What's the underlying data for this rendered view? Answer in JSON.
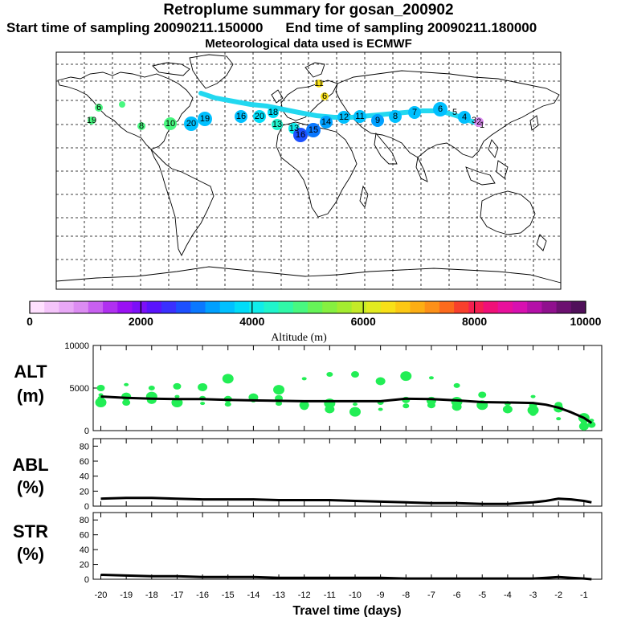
{
  "header": {
    "title": "Retroplume summary for gosan_200902",
    "start_label": "Start time of sampling 20090211.150000",
    "end_label": "End time of sampling 20090211.180000",
    "met_label": "Meteorological data used is ECMWF"
  },
  "colors": {
    "track": "#22d8f0",
    "points": "#22ee55",
    "line": "#000000"
  },
  "chart_data": [
    {
      "type": "map",
      "title": "Retroplume summary for gosan_200902",
      "description_labels": [
        "Altitude (m)"
      ],
      "map_labels": [
        "11",
        "6",
        "6",
        "19",
        "8",
        "10",
        "20",
        "19",
        "16",
        "20",
        "18",
        "13",
        "13",
        "16",
        "15",
        "14",
        "12",
        "11",
        "9",
        "8",
        "7",
        "6",
        "5",
        "4",
        "3",
        "2",
        "1"
      ],
      "colorbar": {
        "label": "Altitude (m)",
        "ticks": [
          "0",
          "2000",
          "4000",
          "6000",
          "8000",
          "10000"
        ],
        "range": [
          0,
          10000
        ],
        "colors": [
          "#ffe0ff",
          "#f4c4fa",
          "#e8a8f6",
          "#dc8cf2",
          "#c860f0",
          "#b030f0",
          "#9a10f4",
          "#7c10f8",
          "#5a14fc",
          "#3a30ff",
          "#1c50ff",
          "#0a78ff",
          "#00a0ff",
          "#00c0ff",
          "#00dcf8",
          "#10ecea",
          "#20f4cc",
          "#30f8a8",
          "#48f880",
          "#66f458",
          "#86f040",
          "#a4ec30",
          "#c4ea28",
          "#e2ea20",
          "#f8e018",
          "#fcc814",
          "#fcae14",
          "#fc9018",
          "#fc6a1c",
          "#f8402c",
          "#f42050",
          "#f01078",
          "#e8109c",
          "#d810b0",
          "#b410a8",
          "#90108e",
          "#6c1070",
          "#50105a"
        ]
      }
    },
    {
      "type": "scatter",
      "panel": "ALT",
      "ylabel": "ALT (m)",
      "ylim": [
        0,
        10000
      ],
      "yticks": [
        "0",
        "5000",
        "10000"
      ],
      "line": {
        "x": [
          -20,
          -19,
          -18,
          -17,
          -16,
          -15,
          -14,
          -13,
          -12,
          -11,
          -10,
          -9,
          -8,
          -7,
          -6,
          -5,
          -4,
          -3,
          -2.5,
          -2,
          -1.5,
          -1,
          -0.7
        ],
        "y": [
          4000,
          3850,
          3750,
          3700,
          3700,
          3600,
          3550,
          3500,
          3450,
          3450,
          3450,
          3450,
          3750,
          3700,
          3550,
          3350,
          3300,
          3250,
          3050,
          2700,
          2150,
          1500,
          900
        ]
      },
      "points": {
        "x": [
          -20,
          -20,
          -20,
          -20,
          -19,
          -19,
          -19,
          -18,
          -18,
          -18,
          -17,
          -17,
          -17,
          -16,
          -16,
          -16,
          -15,
          -15,
          -15,
          -14,
          -14,
          -13,
          -13,
          -13,
          -12,
          -12,
          -12,
          -11,
          -11,
          -11,
          -10,
          -10,
          -10,
          -9,
          -9,
          -9,
          -8,
          -8,
          -8,
          -7,
          -7,
          -7,
          -6,
          -6,
          -6,
          -5,
          -5,
          -5,
          -4,
          -4,
          -3,
          -3,
          -3,
          -3,
          -2,
          -2,
          -2,
          -1,
          -1,
          -1,
          -0.7,
          -0.7
        ],
        "y": [
          4200,
          5000,
          3300,
          3800,
          4000,
          5400,
          3300,
          4000,
          5000,
          3600,
          4000,
          5200,
          3300,
          3800,
          5100,
          3200,
          3700,
          6100,
          3100,
          3900,
          3500,
          3800,
          4800,
          3200,
          3000,
          6100,
          2800,
          3200,
          6600,
          2500,
          3100,
          6600,
          2200,
          3300,
          5800,
          2500,
          3600,
          6400,
          2900,
          3500,
          6200,
          3000,
          3400,
          5300,
          2800,
          3300,
          4200,
          3000,
          3200,
          2500,
          4000,
          3000,
          2400,
          2000,
          2600,
          1400,
          3000,
          1500,
          1000,
          500,
          1200,
          700
        ]
      }
    },
    {
      "type": "line",
      "panel": "ABL",
      "ylabel": "ABL (%)",
      "ylim": [
        0,
        90
      ],
      "yticks": [
        "0",
        "20",
        "40",
        "60",
        "80"
      ],
      "x": [
        -20,
        -19,
        -18,
        -17,
        -16,
        -15,
        -14,
        -13,
        -12,
        -11,
        -10,
        -9,
        -8,
        -7,
        -6,
        -5,
        -4,
        -3,
        -2.5,
        -2,
        -1.5,
        -1,
        -0.7
      ],
      "y": [
        10,
        11,
        11,
        10,
        9,
        9,
        9,
        8,
        8,
        8,
        7,
        6,
        5,
        4,
        4,
        3,
        3,
        5,
        7,
        10,
        9,
        7,
        5
      ]
    },
    {
      "type": "line",
      "panel": "STR",
      "ylabel": "STR (%)",
      "ylim": [
        0,
        90
      ],
      "yticks": [
        "0",
        "20",
        "40",
        "60",
        "80"
      ],
      "xlabel": "Travel time (days)",
      "xticks": [
        "-20",
        "-19",
        "-18",
        "-17",
        "-16",
        "-15",
        "-14",
        "-13",
        "-12",
        "-11",
        "-10",
        "-9",
        "-8",
        "-7",
        "-6",
        "-5",
        "-4",
        "-3",
        "-2",
        "-1"
      ],
      "x": [
        -20,
        -19,
        -18,
        -17,
        -16,
        -15,
        -14,
        -13,
        -12,
        -11,
        -10,
        -9,
        -8,
        -7,
        -6,
        -5,
        -4,
        -3,
        -2.5,
        -2,
        -1.5,
        -1,
        -0.7
      ],
      "y": [
        6,
        5,
        4,
        4,
        3,
        3,
        3,
        2,
        2,
        2,
        2,
        2,
        1,
        1,
        1,
        1,
        1,
        1,
        2,
        3,
        2,
        1,
        0
      ]
    }
  ]
}
